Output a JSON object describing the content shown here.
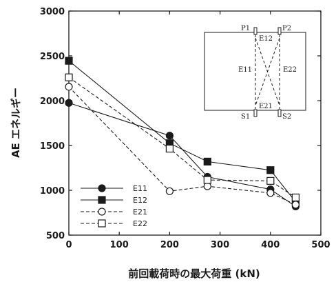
{
  "chart_data": {
    "type": "line",
    "xlabel": "前回載荷時の最大荷重 (kN)",
    "ylabel": "AE エネルギー",
    "xlim": [
      0,
      500
    ],
    "ylim": [
      500,
      3000
    ],
    "xticks": [
      0,
      100,
      200,
      300,
      400,
      500
    ],
    "yticks": [
      500,
      1000,
      1500,
      2000,
      2500,
      3000
    ],
    "grid": false,
    "legend_position": "bottom-left",
    "series": [
      {
        "name": "E11",
        "marker": "filled-circle",
        "line": "solid",
        "points": [
          [
            0,
            1975
          ],
          [
            200,
            1610
          ],
          [
            275,
            1150
          ],
          [
            400,
            1010
          ],
          [
            450,
            820
          ]
        ]
      },
      {
        "name": "E12",
        "marker": "filled-square",
        "line": "solid",
        "points": [
          [
            0,
            2445
          ],
          [
            200,
            1525
          ],
          [
            275,
            1320
          ],
          [
            400,
            1225
          ],
          [
            450,
            870
          ]
        ]
      },
      {
        "name": "E21",
        "marker": "open-circle",
        "line": "dashed",
        "points": [
          [
            0,
            2155
          ],
          [
            200,
            990
          ],
          [
            275,
            1045
          ],
          [
            400,
            970
          ],
          [
            450,
            840
          ]
        ]
      },
      {
        "name": "E22",
        "marker": "open-square",
        "line": "dashed",
        "points": [
          [
            0,
            2260
          ],
          [
            200,
            1465
          ],
          [
            275,
            1115
          ],
          [
            400,
            1105
          ],
          [
            450,
            920
          ]
        ]
      }
    ],
    "inset": {
      "corner_labels": [
        "P1",
        "P2",
        "S1",
        "S2"
      ],
      "sensor_labels": [
        "E12",
        "E11",
        "E22",
        "E21"
      ]
    }
  }
}
